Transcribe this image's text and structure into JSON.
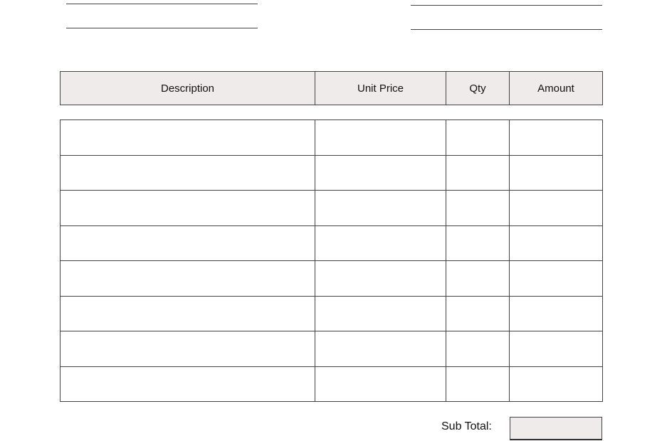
{
  "header_table": {
    "columns": [
      "Description",
      "Unit Price",
      "Qty",
      "Amount"
    ],
    "fill_color": "#efebea"
  },
  "items": {
    "row_count": 8,
    "rows": [
      [
        "",
        "",
        "",
        ""
      ],
      [
        "",
        "",
        "",
        ""
      ],
      [
        "",
        "",
        "",
        ""
      ],
      [
        "",
        "",
        "",
        ""
      ],
      [
        "",
        "",
        "",
        ""
      ],
      [
        "",
        "",
        "",
        ""
      ],
      [
        "",
        "",
        "",
        ""
      ],
      [
        "",
        "",
        "",
        ""
      ]
    ]
  },
  "totals": {
    "sub_total_label": "Sub Total:",
    "sub_total_value": ""
  }
}
